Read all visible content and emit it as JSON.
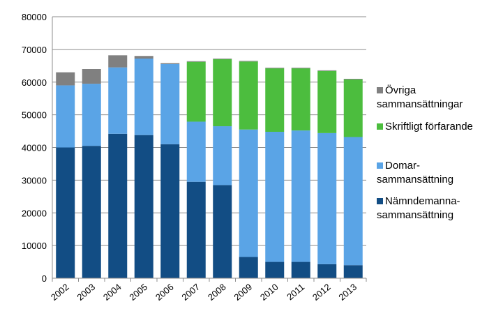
{
  "chart_data": {
    "type": "bar",
    "stacked": true,
    "title": "",
    "xlabel": "",
    "ylabel": "",
    "ylim": [
      0,
      80000
    ],
    "yticks": [
      0,
      10000,
      20000,
      30000,
      40000,
      50000,
      60000,
      70000,
      80000
    ],
    "grid": true,
    "legend_position": "right",
    "categories": [
      "2002",
      "2003",
      "2004",
      "2005",
      "2006",
      "2007",
      "2008",
      "2009",
      "2010",
      "2011",
      "2012",
      "2013"
    ],
    "series": [
      {
        "name": "Nämndemanna-sammansättning",
        "legend_lines": [
          "Nämndemanna-",
          "sammansättning"
        ],
        "color": "#124d84",
        "values": [
          40000,
          40500,
          44200,
          43800,
          41000,
          29500,
          28500,
          6500,
          5000,
          5000,
          4300,
          4000
        ]
      },
      {
        "name": "Domar-sammansättning",
        "legend_lines": [
          "Domar-",
          "sammansättning"
        ],
        "color": "#5aa4e6",
        "values": [
          19000,
          19000,
          20300,
          23400,
          24500,
          18400,
          18000,
          39000,
          39800,
          40200,
          40100,
          39200
        ]
      },
      {
        "name": "Skriftligt förfarande",
        "legend_lines": [
          "Skriftligt förfarande"
        ],
        "color": "#4cbd3e",
        "values": [
          0,
          0,
          0,
          0,
          0,
          18300,
          20500,
          20800,
          19400,
          19000,
          19000,
          17600
        ]
      },
      {
        "name": "Övriga sammansättningar",
        "legend_lines": [
          "Övriga",
          "sammansättningar"
        ],
        "color": "#808080",
        "values": [
          4000,
          4500,
          3700,
          800,
          300,
          200,
          200,
          200,
          200,
          200,
          200,
          200
        ]
      }
    ]
  }
}
